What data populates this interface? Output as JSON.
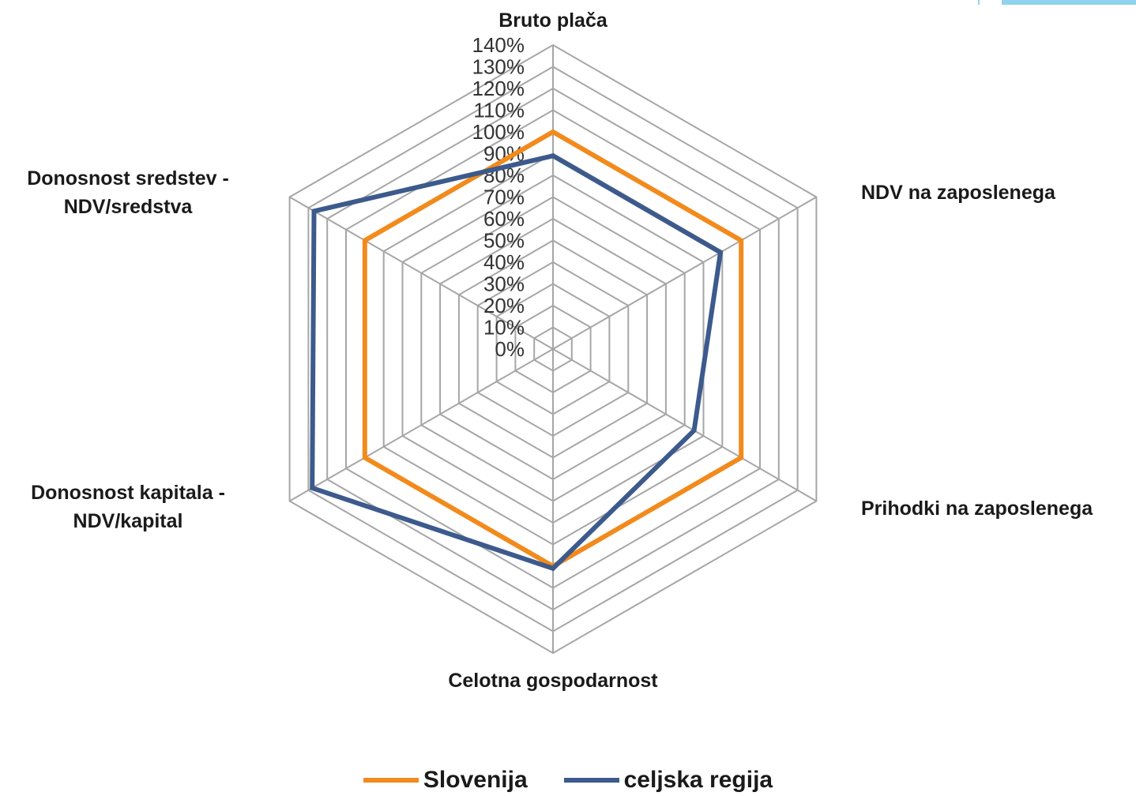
{
  "chart_data": {
    "type": "radar",
    "title": "",
    "categories": [
      "Bruto plača",
      "NDV na zaposlenega",
      "Prihodki na zaposlenega",
      "Celotna gospodarnost",
      "Donosnost kapitala - NDV/kapital",
      "Donosnost sredstev - NDV/sredstva"
    ],
    "category_lines": [
      [
        "Bruto plača"
      ],
      [
        "NDV na zaposlenega"
      ],
      [
        "Prihodki na zaposlenega"
      ],
      [
        "Celotna gospodarnost"
      ],
      [
        "Donosnost kapitala -",
        "NDV/kapital"
      ],
      [
        "Donosnost sredstev -",
        "NDV/sredstva"
      ]
    ],
    "series": [
      {
        "name": "Slovenija",
        "values": [
          100,
          100,
          100,
          100,
          100,
          100
        ],
        "color": "#f28a1c"
      },
      {
        "name": "celjska regija",
        "values": [
          89,
          89,
          75,
          101,
          128,
          127
        ],
        "color": "#3c5a8c"
      }
    ],
    "r_axis": {
      "min": 0,
      "max": 140,
      "step": 10,
      "unit": "%"
    },
    "tick_labels": [
      "0%",
      "10%",
      "20%",
      "30%",
      "40%",
      "50%",
      "60%",
      "70%",
      "80%",
      "90%",
      "100%",
      "110%",
      "120%",
      "130%",
      "140%"
    ],
    "grid": true,
    "grid_color": "#a6a6a6",
    "legend_position": "bottom"
  }
}
